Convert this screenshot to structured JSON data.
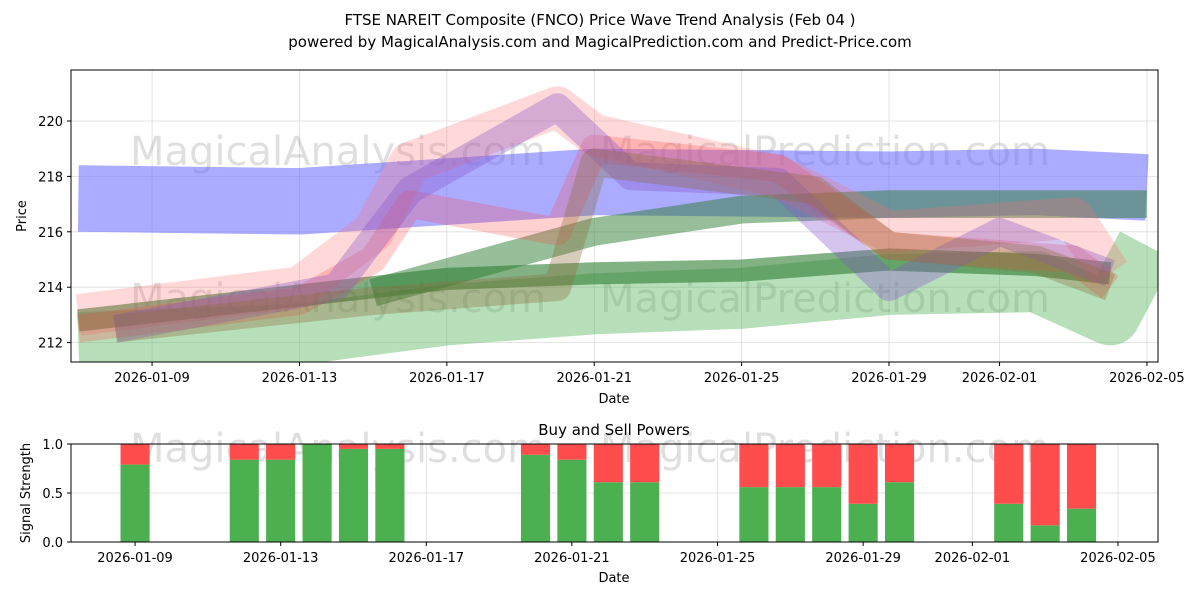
{
  "chart_data": [
    {
      "type": "area",
      "title": "FTSE NAREIT Composite (FNCO) Price Wave Trend Analysis (Feb 04 )",
      "subtitle": "powered by MagicalAnalysis.com and MagicalPrediction.com and Predict-Price.com",
      "xlabel": "Date",
      "ylabel": "Price",
      "xlim": [
        "2026-01-06.8",
        "2026-02-05.3"
      ],
      "ylim": [
        211.3,
        221.84
      ],
      "xticks": [
        "2026-01-09",
        "2026-01-13",
        "2026-01-17",
        "2026-01-21",
        "2026-01-25",
        "2026-01-29",
        "2026-02-01",
        "2026-02-05"
      ],
      "yticks": [
        212,
        214,
        216,
        218,
        220
      ],
      "grid": true,
      "watermark": [
        "MagicalAnalysis.com",
        "MagicalPrediction.com"
      ],
      "series": [
        {
          "name": "blue-wave",
          "color": "#6666ff",
          "opacity": 0.55,
          "width": 2.4,
          "points": [
            [
              "2026-01-07",
              217.2
            ],
            [
              "2026-01-13",
              217.1
            ],
            [
              "2026-01-21",
              217.8
            ],
            [
              "2026-01-29",
              217.7
            ],
            [
              "2026-02-02",
              217.8
            ],
            [
              "2026-02-05",
              217.6
            ]
          ]
        },
        {
          "name": "green-wave-wide",
          "color": "#4caf50",
          "opacity": 0.4,
          "width": 2.2,
          "points": [
            [
              "2026-01-07",
              212.0
            ],
            [
              "2026-01-13",
              212.3
            ],
            [
              "2026-01-17",
              213.0
            ],
            [
              "2026-01-21",
              213.4
            ],
            [
              "2026-01-25",
              213.6
            ],
            [
              "2026-01-29",
              214.1
            ],
            [
              "2026-02-02",
              214.2
            ],
            [
              "2026-02-04",
              213.0
            ],
            [
              "2026-02-05",
              215.5
            ]
          ]
        },
        {
          "name": "green-wave-dark",
          "color": "#2e7d32",
          "opacity": 0.6,
          "width": 0.8,
          "points": [
            [
              "2026-01-07",
              212.8
            ],
            [
              "2026-01-13",
              213.7
            ],
            [
              "2026-01-17",
              214.3
            ],
            [
              "2026-01-21",
              214.5
            ],
            [
              "2026-01-25",
              214.6
            ],
            [
              "2026-01-29",
              215.0
            ],
            [
              "2026-02-02",
              214.8
            ],
            [
              "2026-02-04",
              214.5
            ]
          ]
        },
        {
          "name": "green-wave-upper",
          "color": "#2e7d32",
          "opacity": 0.5,
          "width": 1.0,
          "points": [
            [
              "2026-01-15",
              213.8
            ],
            [
              "2026-01-21",
              216.0
            ],
            [
              "2026-01-25",
              216.8
            ],
            [
              "2026-01-29",
              217.0
            ],
            [
              "2026-02-05",
              217.0
            ]
          ]
        },
        {
          "name": "red-wave-1",
          "color": "#ff6666",
          "opacity": 0.25,
          "width": 1.5,
          "points": [
            [
              "2026-01-07",
              213.0
            ],
            [
              "2026-01-13",
              214.0
            ],
            [
              "2026-01-15",
              216.0
            ],
            [
              "2026-01-16",
              218.5
            ],
            [
              "2026-01-20",
              220.5
            ],
            [
              "2026-01-21",
              219.5
            ],
            [
              "2026-01-26",
              218.0
            ],
            [
              "2026-01-29",
              216.0
            ],
            [
              "2026-02-03",
              216.5
            ],
            [
              "2026-02-04",
              214.5
            ]
          ]
        },
        {
          "name": "red-wave-2",
          "color": "#ff4444",
          "opacity": 0.25,
          "width": 1.0,
          "points": [
            [
              "2026-01-07",
              212.5
            ],
            [
              "2026-01-13",
              213.5
            ],
            [
              "2026-01-15",
              215.0
            ],
            [
              "2026-01-16",
              217.0
            ],
            [
              "2026-01-20",
              216.0
            ],
            [
              "2026-01-21",
              219.0
            ],
            [
              "2026-01-26",
              218.3
            ],
            [
              "2026-01-29",
              215.5
            ],
            [
              "2026-02-03",
              215.0
            ],
            [
              "2026-02-04",
              214.0
            ]
          ]
        },
        {
          "name": "purple-wave",
          "color": "#8855cc",
          "opacity": 0.35,
          "width": 1.0,
          "points": [
            [
              "2026-01-08",
              212.5
            ],
            [
              "2026-01-14",
              214.0
            ],
            [
              "2026-01-16",
              217.5
            ],
            [
              "2026-01-20",
              220.5
            ],
            [
              "2026-01-22",
              218.0
            ],
            [
              "2026-01-26",
              217.8
            ],
            [
              "2026-01-29",
              214.0
            ],
            [
              "2026-02-01",
              216.0
            ],
            [
              "2026-02-04",
              214.5
            ]
          ]
        },
        {
          "name": "brown-wave",
          "color": "#8d6e3c",
          "opacity": 0.35,
          "width": 1.0,
          "points": [
            [
              "2026-01-08",
              212.5
            ],
            [
              "2026-01-15",
              213.5
            ],
            [
              "2026-01-20",
              214.0
            ],
            [
              "2026-01-21",
              218.5
            ],
            [
              "2026-01-27",
              217.5
            ],
            [
              "2026-01-29",
              215.5
            ],
            [
              "2026-02-02",
              215.0
            ],
            [
              "2026-02-04",
              214.0
            ]
          ]
        }
      ]
    },
    {
      "type": "bar",
      "title": "Buy and Sell Powers",
      "xlabel": "Date",
      "ylabel": "Signal Strength",
      "xlim": [
        "2026-01-07.24",
        "2026-02-06.1"
      ],
      "ylim": [
        0,
        1.0
      ],
      "xticks": [
        "2026-01-09",
        "2026-01-13",
        "2026-01-17",
        "2026-01-21",
        "2026-01-25",
        "2026-01-29",
        "2026-02-01",
        "2026-02-05"
      ],
      "yticks": [
        "0.0",
        "0.5",
        "1.0"
      ],
      "colors": {
        "buy": "#4caf50",
        "sell": "#ff4c4c"
      },
      "categories": [
        "2026-01-09",
        "2026-01-12",
        "2026-01-13",
        "2026-01-14",
        "2026-01-15",
        "2026-01-16",
        "2026-01-20",
        "2026-01-21",
        "2026-01-22",
        "2026-01-23",
        "2026-01-26",
        "2026-01-27",
        "2026-01-28",
        "2026-01-29",
        "2026-01-30",
        "2026-02-02",
        "2026-02-03",
        "2026-02-04"
      ],
      "series": [
        {
          "name": "Buy",
          "values": [
            0.79,
            0.84,
            0.84,
            1.0,
            0.95,
            0.95,
            0.89,
            0.84,
            0.61,
            0.61,
            0.56,
            0.56,
            0.56,
            0.39,
            0.61,
            0.39,
            0.17,
            0.34
          ]
        },
        {
          "name": "Sell",
          "values": [
            0.21,
            0.16,
            0.16,
            0.0,
            0.05,
            0.05,
            0.11,
            0.16,
            0.39,
            0.39,
            0.44,
            0.44,
            0.44,
            0.61,
            0.39,
            0.61,
            0.83,
            0.66
          ]
        }
      ]
    }
  ]
}
